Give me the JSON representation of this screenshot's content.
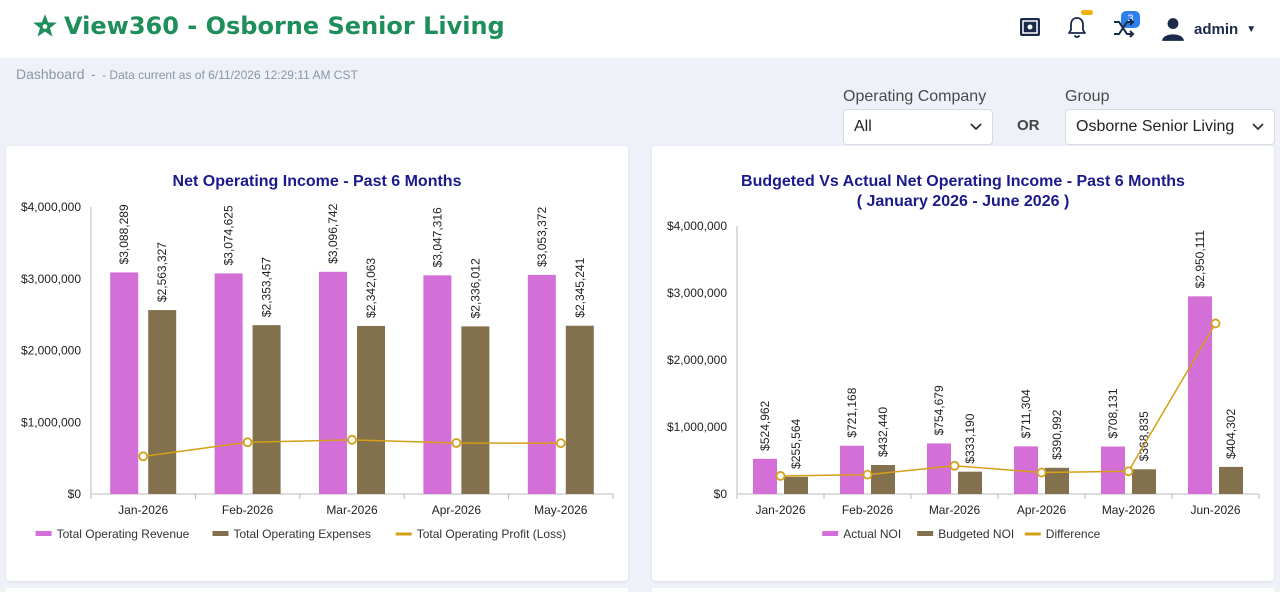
{
  "app": {
    "title": "View360 - Osborne Senior Living",
    "user": "admin",
    "notification_count": "3",
    "colors": {
      "brand": "#1e8f5a",
      "nav": "#1a2a4a",
      "badge": "#2f80ed",
      "badge_dot": "#f0b400"
    },
    "icons": [
      "star-logo-icon",
      "frame-icon",
      "bell-icon",
      "shuffle-icon",
      "user-icon",
      "chevron-down-icon"
    ]
  },
  "breadcrumb": {
    "main": "Dashboard",
    "separator": "-",
    "sub": "- Data current as of 6/11/2026 12:29:11 AM CST"
  },
  "filters": {
    "operating_company": {
      "label": "Operating Company",
      "value": "All"
    },
    "or_label": "OR",
    "group": {
      "label": "Group",
      "value": "Osborne Senior Living"
    }
  },
  "chart_data": [
    {
      "type": "bar",
      "title": "Net Operating Income - Past 6 Months",
      "categories": [
        "Jan-2026",
        "Feb-2026",
        "Mar-2026",
        "Apr-2026",
        "May-2026"
      ],
      "series": [
        {
          "name": "Total Operating Revenue",
          "type": "bar",
          "color": "#d36fd6",
          "values": [
            3088289,
            3074625,
            3096742,
            3047316,
            3053372
          ],
          "labels": [
            "$3,088,289",
            "$3,074,625",
            "$3,096,742",
            "$3,047,316",
            "$3,053,372"
          ]
        },
        {
          "name": "Total Operating Expenses",
          "type": "bar",
          "color": "#82714c",
          "values": [
            2563327,
            2353457,
            2342063,
            2336012,
            2345241
          ],
          "labels": [
            "$2,563,327",
            "$2,353,457",
            "$2,342,063",
            "$2,336,012",
            "$2,345,241"
          ]
        },
        {
          "name": "Total Operating Profit (Loss)",
          "type": "line",
          "color": "#d4a017",
          "values": [
            525000,
            721000,
            755000,
            711000,
            708000
          ]
        }
      ],
      "ylim": [
        0,
        4000000
      ],
      "yticks": [
        "$0",
        "$1,000,000",
        "$2,000,000",
        "$3,000,000",
        "$4,000,000"
      ],
      "legend": "bottom"
    },
    {
      "type": "bar",
      "title": "Budgeted Vs Actual Net Operating Income - Past 6 Months",
      "subtitle": "( January 2026 - June 2026 )",
      "categories": [
        "Jan-2026",
        "Feb-2026",
        "Mar-2026",
        "Apr-2026",
        "May-2026",
        "Jun-2026"
      ],
      "series": [
        {
          "name": "Actual NOI",
          "type": "bar",
          "color": "#d36fd6",
          "values": [
            524962,
            721168,
            754679,
            711304,
            708131,
            2950111
          ],
          "labels": [
            "$524,962",
            "$721,168",
            "$754,679",
            "$711,304",
            "$708,131",
            "$2,950,111"
          ]
        },
        {
          "name": "Budgeted NOI",
          "type": "bar",
          "color": "#82714c",
          "values": [
            255564,
            432440,
            333190,
            390992,
            368835,
            404302
          ],
          "labels": [
            "$255,564",
            "$432,440",
            "$333,190",
            "$390,992",
            "$368,835",
            "$404,302"
          ]
        },
        {
          "name": "Difference",
          "type": "line",
          "color": "#d4a017",
          "values": [
            269398,
            288728,
            421489,
            320312,
            339296,
            2545809
          ]
        }
      ],
      "ylim": [
        0,
        4000000
      ],
      "yticks": [
        "$0",
        "$1,000,000",
        "$2,000,000",
        "$3,000,000",
        "$4,000,000"
      ],
      "legend": "bottom"
    }
  ]
}
